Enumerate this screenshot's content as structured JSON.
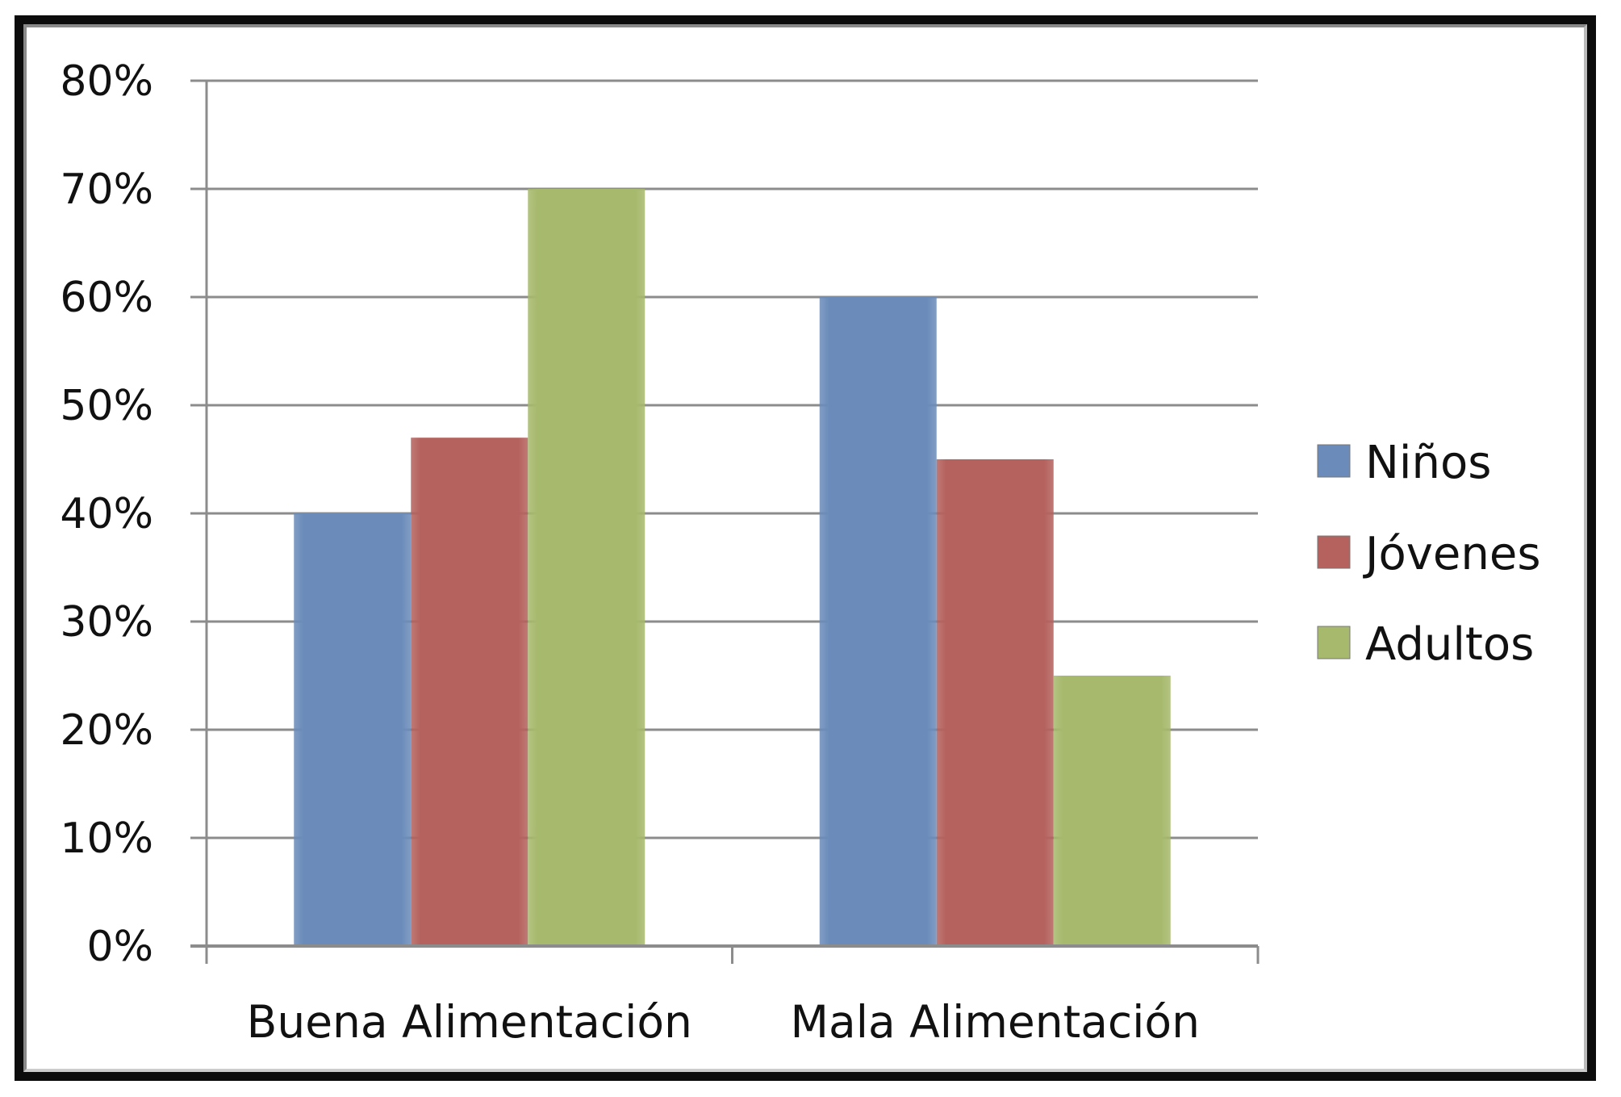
{
  "chart_data": {
    "type": "bar",
    "title": "",
    "xlabel": "",
    "ylabel": "",
    "categories": [
      "Buena Alimentación",
      "Mala Alimentación"
    ],
    "series": [
      {
        "name": "Niños",
        "values": [
          40,
          60
        ],
        "color": "#6b8cba"
      },
      {
        "name": "Jóvenes",
        "values": [
          47,
          45
        ],
        "color": "#b5625e"
      },
      {
        "name": "Adultos",
        "values": [
          70,
          25
        ],
        "color": "#a7b96d"
      }
    ],
    "ylim": [
      0,
      80
    ],
    "yticks": [
      "0%",
      "10%",
      "20%",
      "30%",
      "40%",
      "50%",
      "60%",
      "70%",
      "80%"
    ],
    "grid": true,
    "legend": "right"
  }
}
